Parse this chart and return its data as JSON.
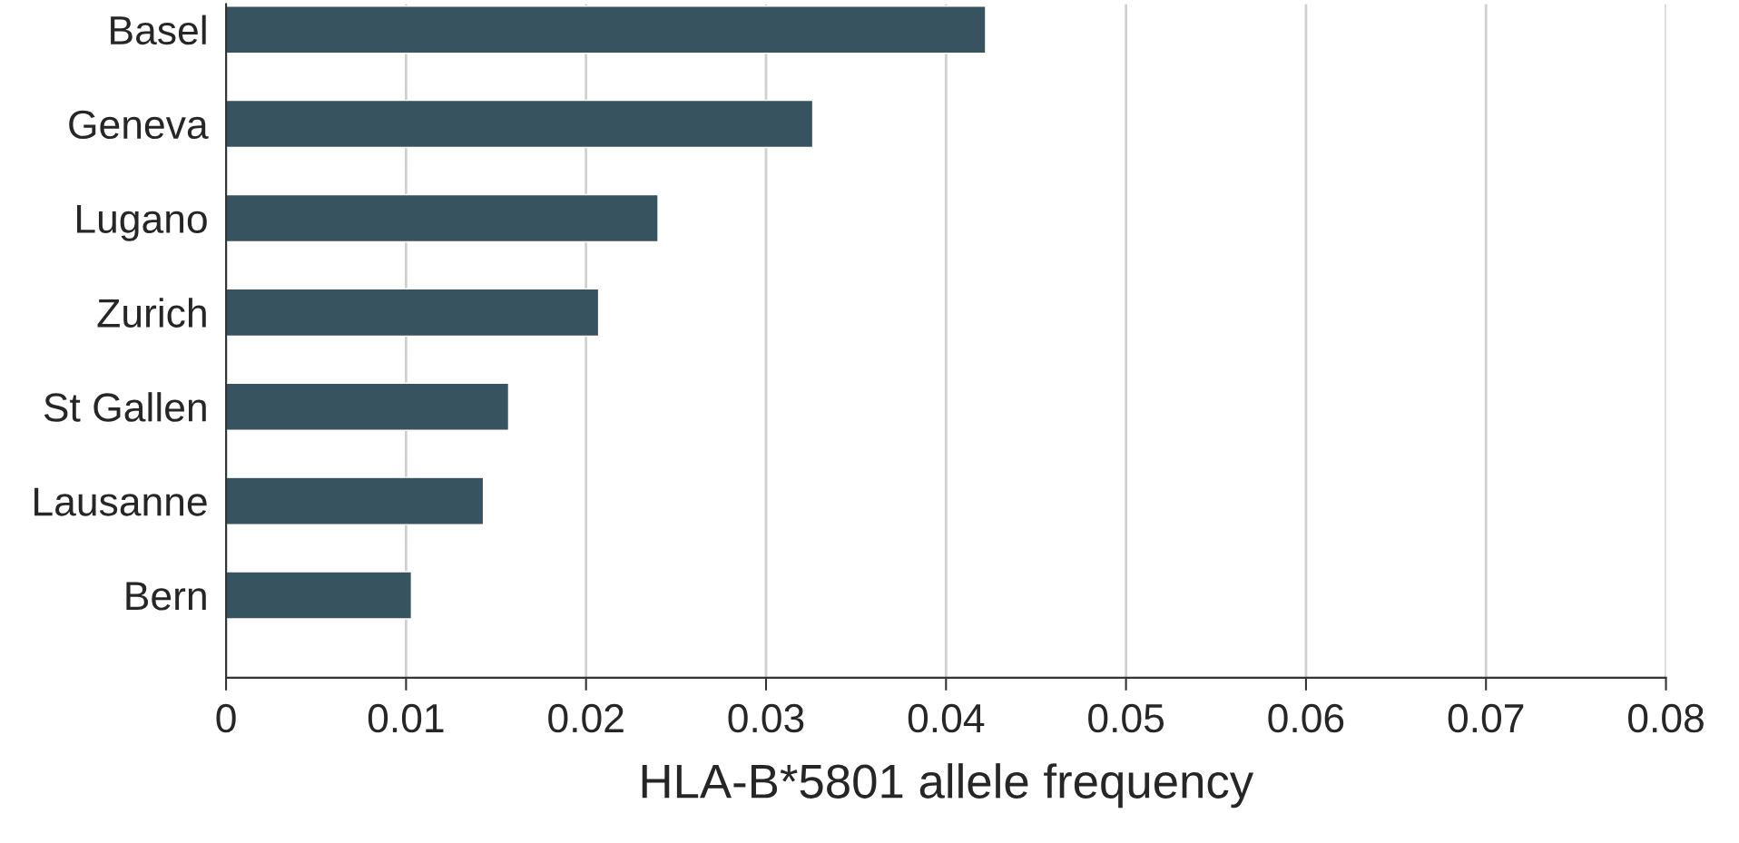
{
  "chart_data": {
    "type": "bar",
    "orientation": "horizontal",
    "xlabel": "HLA-B*5801 allele frequency",
    "categories": [
      "Basel",
      "Geneva",
      "Lugano",
      "Zurich",
      "St Gallen",
      "Lausanne",
      "Bern"
    ],
    "values": [
      0.0422,
      0.0326,
      0.024,
      0.0207,
      0.0157,
      0.0143,
      0.0103
    ],
    "color": "#37535f",
    "xlim": [
      0,
      0.08
    ],
    "xticks": [
      0,
      0.01,
      0.02,
      0.03,
      0.04,
      0.05,
      0.06,
      0.07,
      0.08
    ],
    "grid": "x"
  }
}
